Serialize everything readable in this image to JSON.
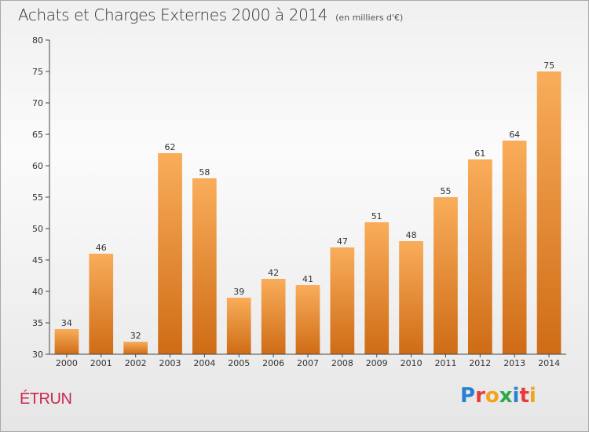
{
  "header": {
    "title": "Achats et Charges Externes 2000 à 2014",
    "subtitle": "(en milliers d'€)"
  },
  "footer": {
    "commune": "ÉTRUN",
    "logo": {
      "text": "Proxiti",
      "letters": [
        {
          "char": "P",
          "color": "#2a7fd0"
        },
        {
          "char": "r",
          "color": "#e8393c"
        },
        {
          "char": "o",
          "color": "#f2a21b"
        },
        {
          "char": "x",
          "color": "#2aa84a"
        },
        {
          "char": "i",
          "color": "#2a7fd0"
        },
        {
          "char": "t",
          "color": "#e8393c"
        },
        {
          "char": "i",
          "color": "#f2a21b"
        }
      ]
    }
  },
  "chart_data": {
    "type": "bar",
    "title": "Achats et Charges Externes 2000 à 2014",
    "subtitle": "(en milliers d'€)",
    "categories": [
      "2000",
      "2001",
      "2002",
      "2003",
      "2004",
      "2005",
      "2006",
      "2007",
      "2008",
      "2009",
      "2010",
      "2011",
      "2012",
      "2013",
      "2014"
    ],
    "values": [
      34,
      46,
      32,
      62,
      58,
      39,
      42,
      41,
      47,
      51,
      48,
      55,
      61,
      64,
      75
    ],
    "ylim": [
      30,
      80
    ],
    "yticks": [
      30,
      35,
      40,
      45,
      50,
      55,
      60,
      65,
      70,
      75,
      80
    ],
    "xlabel": "",
    "ylabel": "",
    "grid": false,
    "data_labels": true,
    "colors": {
      "bar_top": "#f9ad5a",
      "bar_bottom": "#cf6c16",
      "axis": "#444444",
      "tick_text": "#333333",
      "label_text": "#333333"
    }
  }
}
